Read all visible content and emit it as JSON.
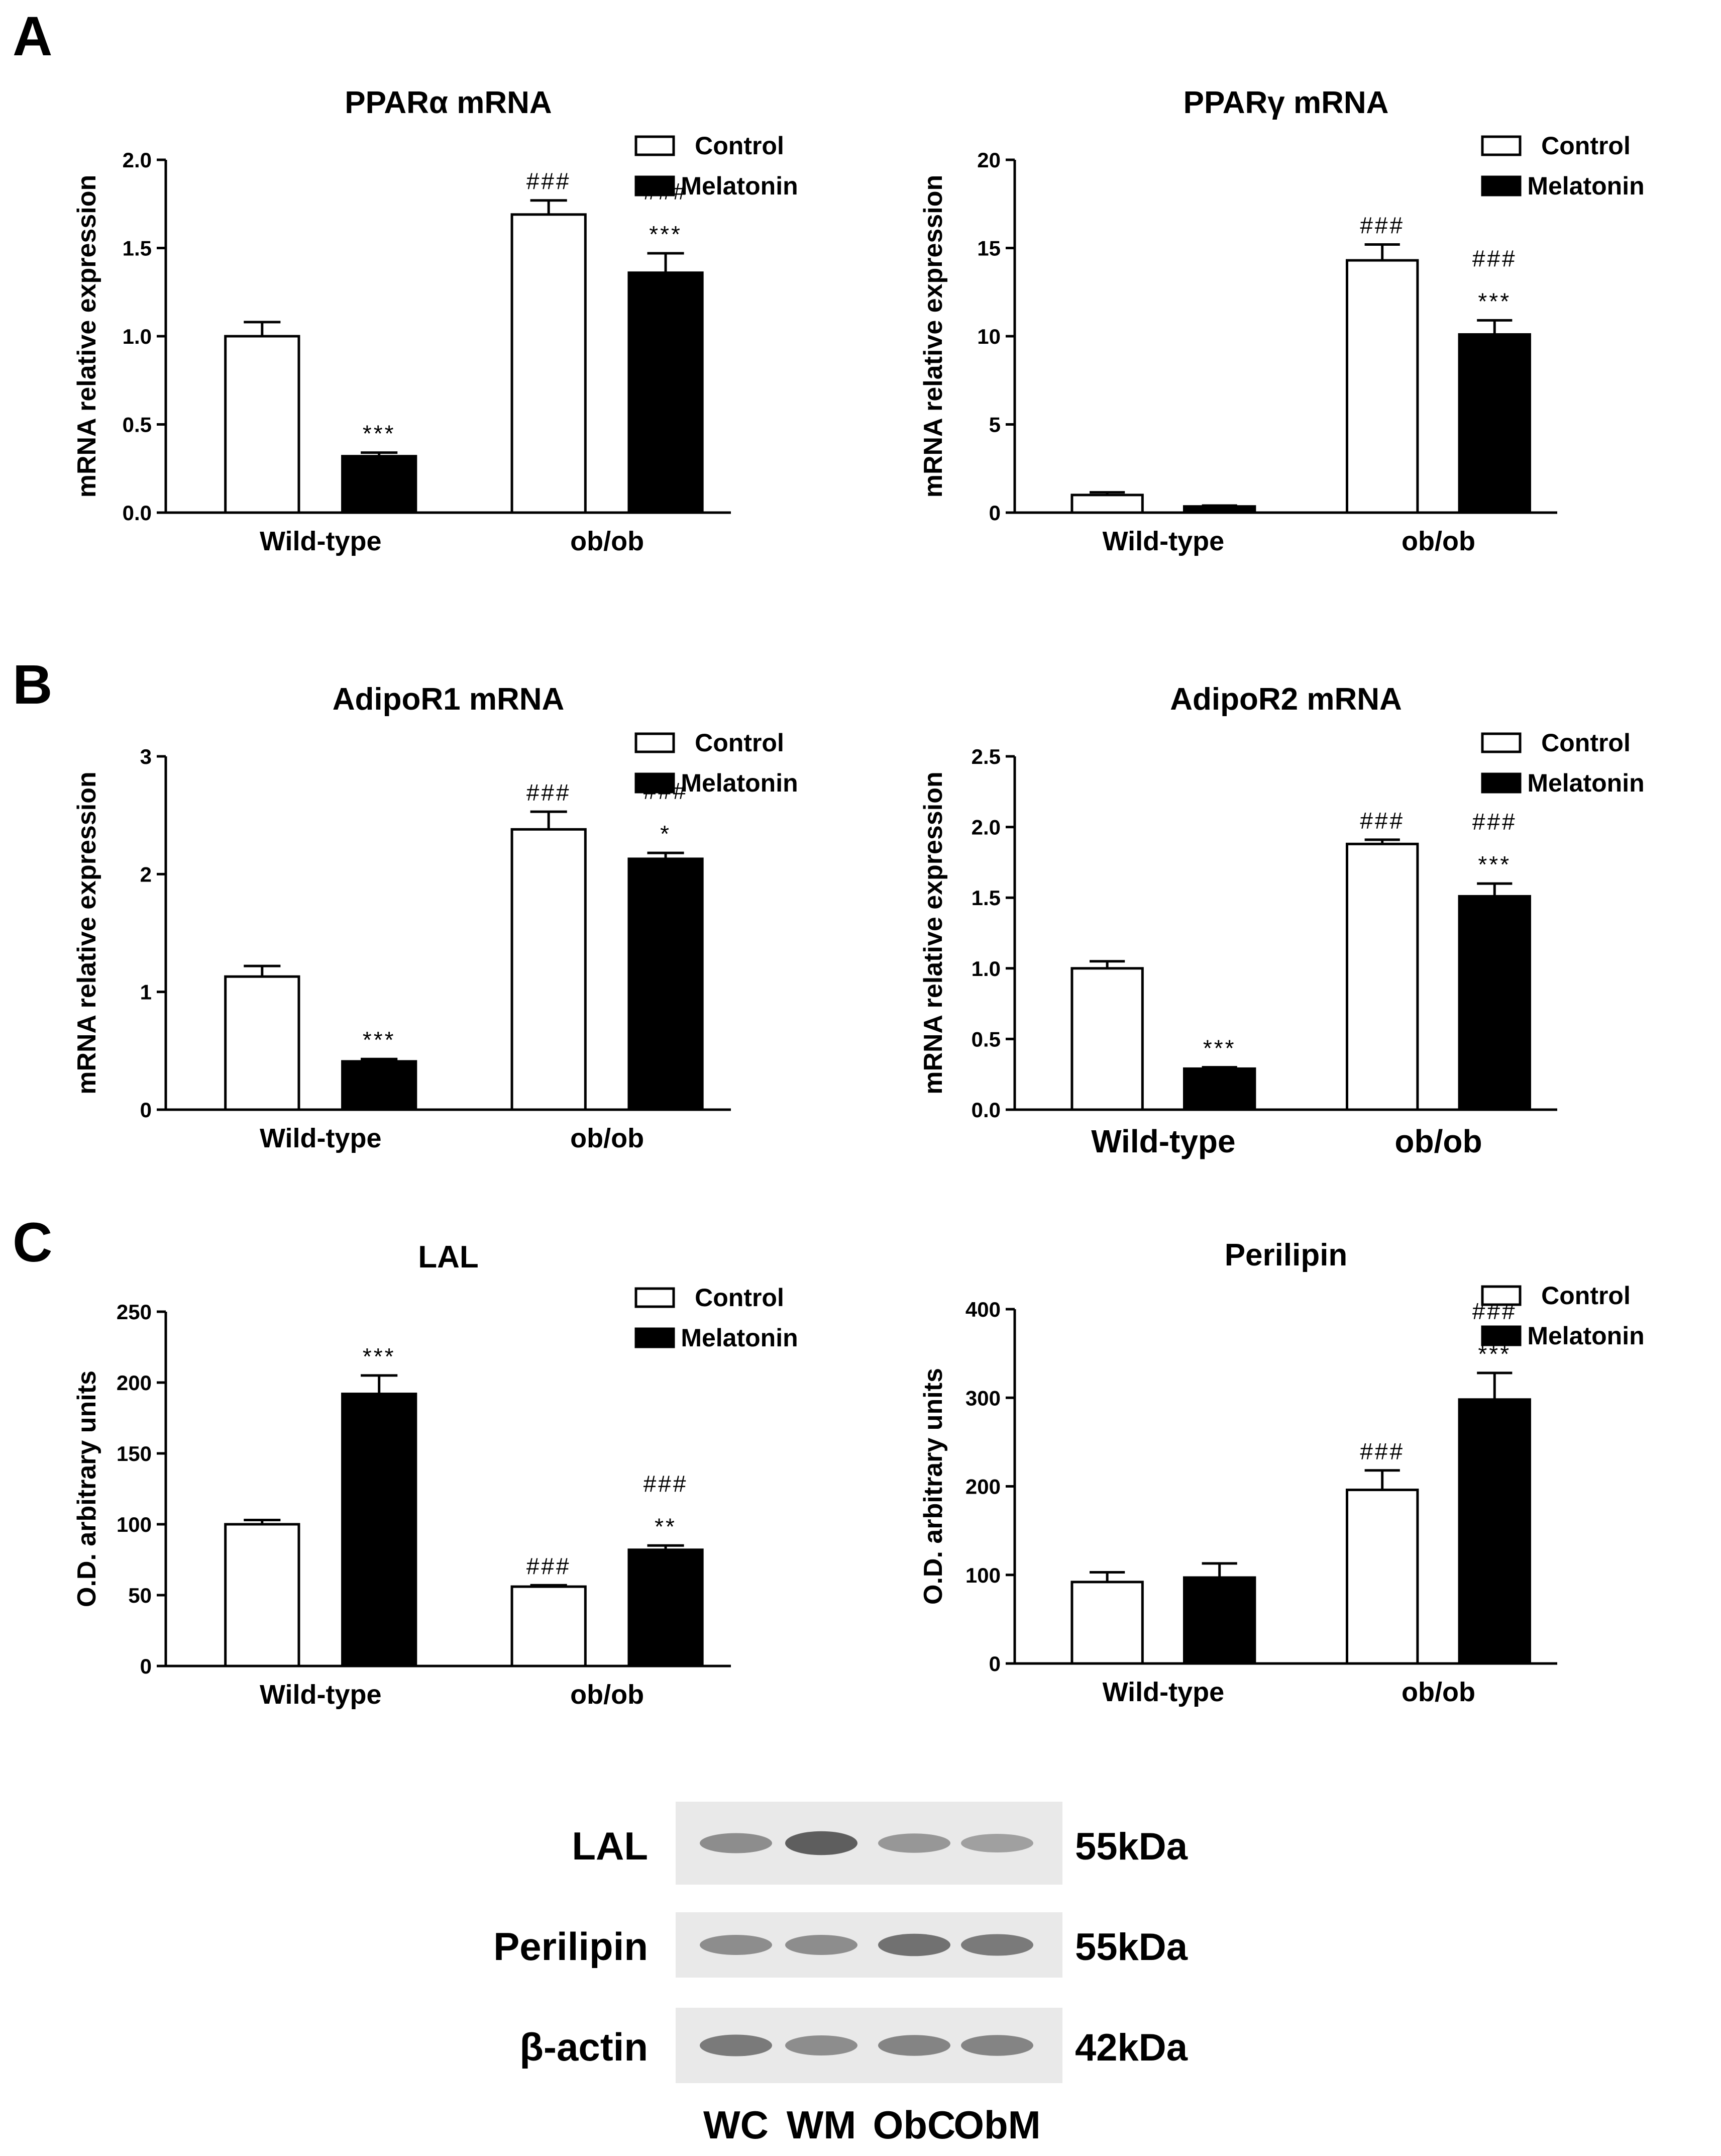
{
  "panel_letters": [
    "A",
    "B",
    "C"
  ],
  "legend": {
    "control": "Control",
    "melatonin": "Melatonin"
  },
  "colors": {
    "control_fill": "#ffffff",
    "melatonin_fill": "#000000",
    "axis": "#000000"
  },
  "chart_data": [
    {
      "type": "bar",
      "panel": "A",
      "title": "PPARα mRNA",
      "ylabel": "mRNA relative expression",
      "categories": [
        "Wild-type",
        "ob/ob"
      ],
      "yticks": [
        "0.0",
        "0.5",
        "1.0",
        "1.5",
        "2.0"
      ],
      "ylim": [
        0,
        2.0
      ],
      "legend": [
        "Control",
        "Melatonin"
      ],
      "series": [
        {
          "name": "Control",
          "values": [
            1.0,
            1.69
          ],
          "errors": [
            0.08,
            0.08
          ],
          "annotations": [
            "",
            "###"
          ]
        },
        {
          "name": "Melatonin",
          "values": [
            0.32,
            1.36
          ],
          "errors": [
            0.02,
            0.11
          ],
          "annotations": [
            "***",
            "###\n***"
          ]
        }
      ]
    },
    {
      "type": "bar",
      "panel": "A",
      "title": "PPARγ mRNA",
      "ylabel": "mRNA relative expression",
      "categories": [
        "Wild-type",
        "ob/ob"
      ],
      "yticks": [
        "0",
        "5",
        "10",
        "15",
        "20"
      ],
      "ylim": [
        0,
        20
      ],
      "legend": [
        "Control",
        "Melatonin"
      ],
      "series": [
        {
          "name": "Control",
          "values": [
            1.0,
            14.3
          ],
          "errors": [
            0.15,
            0.9
          ],
          "annotations": [
            "",
            "###"
          ]
        },
        {
          "name": "Melatonin",
          "values": [
            0.35,
            10.1
          ],
          "errors": [
            0.05,
            0.8
          ],
          "annotations": [
            "",
            "###\n***"
          ]
        }
      ]
    },
    {
      "type": "bar",
      "panel": "B",
      "title": "AdipoR1 mRNA",
      "ylabel": "mRNA relative expression",
      "categories": [
        "Wild-type",
        "ob/ob"
      ],
      "yticks": [
        "0",
        "1",
        "2",
        "3"
      ],
      "ylim": [
        0,
        3
      ],
      "legend": [
        "Control",
        "Melatonin"
      ],
      "series": [
        {
          "name": "Control",
          "values": [
            1.13,
            2.38
          ],
          "errors": [
            0.09,
            0.15
          ],
          "annotations": [
            "",
            "###"
          ]
        },
        {
          "name": "Melatonin",
          "values": [
            0.41,
            2.13
          ],
          "errors": [
            0.02,
            0.05
          ],
          "annotations": [
            "***",
            "###\n*"
          ]
        }
      ]
    },
    {
      "type": "bar",
      "panel": "B",
      "title": "AdipoR2 mRNA",
      "ylabel": "mRNA relative expression",
      "categories": [
        "Wild-type",
        "ob/ob"
      ],
      "yticks": [
        "0.0",
        "0.5",
        "1.0",
        "1.5",
        "2.0",
        "2.5"
      ],
      "ylim": [
        0,
        2.5
      ],
      "legend": [
        "Control",
        "Melatonin"
      ],
      "series": [
        {
          "name": "Control",
          "values": [
            1.0,
            1.88
          ],
          "errors": [
            0.05,
            0.03
          ],
          "annotations": [
            "",
            "###"
          ]
        },
        {
          "name": "Melatonin",
          "values": [
            0.29,
            1.51
          ],
          "errors": [
            0.01,
            0.09
          ],
          "annotations": [
            "***",
            "###\n***"
          ]
        }
      ]
    },
    {
      "type": "bar",
      "panel": "C",
      "title": "LAL",
      "ylabel": "O.D. arbitrary units",
      "categories": [
        "Wild-type",
        "ob/ob"
      ],
      "yticks": [
        "0",
        "50",
        "100",
        "150",
        "200",
        "250"
      ],
      "ylim": [
        0,
        250
      ],
      "legend": [
        "Control",
        "Melatonin"
      ],
      "series": [
        {
          "name": "Control",
          "values": [
            100,
            56
          ],
          "errors": [
            3,
            1
          ],
          "annotations": [
            "",
            "###"
          ]
        },
        {
          "name": "Melatonin",
          "values": [
            192,
            82
          ],
          "errors": [
            13,
            3
          ],
          "annotations": [
            "***",
            "###\n**"
          ]
        }
      ]
    },
    {
      "type": "bar",
      "panel": "C",
      "title": "Perilipin",
      "ylabel": "O.D. arbitrary units",
      "categories": [
        "Wild-type",
        "ob/ob"
      ],
      "yticks": [
        "0",
        "100",
        "200",
        "300",
        "400"
      ],
      "ylim": [
        0,
        400
      ],
      "legend": [
        "Control",
        "Melatonin"
      ],
      "series": [
        {
          "name": "Control",
          "values": [
            92,
            196
          ],
          "errors": [
            11,
            22
          ],
          "annotations": [
            "",
            "###"
          ]
        },
        {
          "name": "Melatonin",
          "values": [
            97,
            298
          ],
          "errors": [
            16,
            30
          ],
          "annotations": [
            "",
            "###\n***"
          ]
        }
      ]
    }
  ],
  "western_blot": {
    "rows": [
      {
        "label": "LAL",
        "kda": "55kDa",
        "band_intensity": [
          0.6,
          0.85,
          0.55,
          0.5
        ]
      },
      {
        "label": "Perilipin",
        "kda": "55kDa",
        "band_intensity": [
          0.6,
          0.6,
          0.75,
          0.7
        ]
      },
      {
        "label": "β-actin",
        "kda": "42kDa",
        "band_intensity": [
          0.7,
          0.6,
          0.65,
          0.65
        ]
      }
    ],
    "lanes": [
      "WC",
      "WM",
      "ObC",
      "ObM"
    ]
  }
}
